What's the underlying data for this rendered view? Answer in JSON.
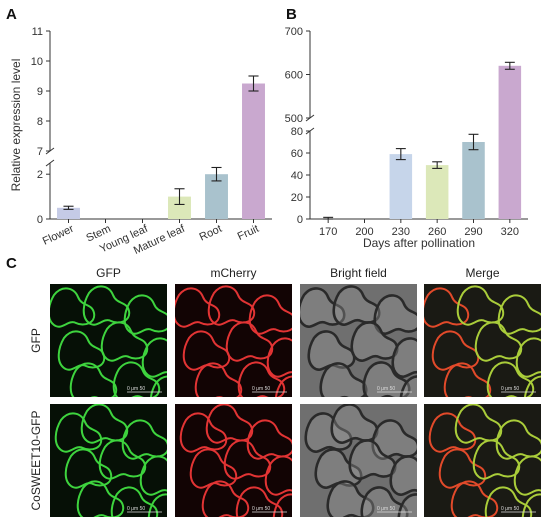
{
  "panels": {
    "a": "A",
    "b": "B",
    "c": "C"
  },
  "chart_data": [
    {
      "type": "bar",
      "panel": "A",
      "ylabel": "Relative expression level",
      "categories": [
        "Flower",
        "Stem",
        "Young leaf",
        "Mature leaf",
        "Root",
        "Fruit"
      ],
      "values": [
        0.5,
        0,
        0,
        1.0,
        2.0,
        9.25
      ],
      "errors": [
        0.07,
        0,
        0,
        0.35,
        0.3,
        0.25
      ],
      "colors": [
        "#c5cbe6",
        "#c5cbe6",
        "#c5cbe6",
        "#dce8b9",
        "#a9c2cd",
        "#c9a8cf"
      ],
      "y_break": {
        "lower": [
          0,
          2.5
        ],
        "upper": [
          7,
          11
        ]
      },
      "yticks_lower": [
        "0",
        "2"
      ],
      "yticks_upper": [
        "7",
        "8",
        "9",
        "10",
        "11"
      ]
    },
    {
      "type": "bar",
      "panel": "B",
      "xlabel": "Days after pollination",
      "categories": [
        "170",
        "200",
        "230",
        "260",
        "290",
        "320"
      ],
      "values": [
        0,
        0,
        59,
        49,
        70,
        620
      ],
      "errors": [
        1.5,
        0,
        5,
        3,
        7,
        8
      ],
      "colors": [
        "#c6d5ea",
        "#c6d5ea",
        "#c6d5ea",
        "#dce8b9",
        "#a9c2cd",
        "#c9a8cf"
      ],
      "y_break": {
        "lower": [
          0,
          80
        ],
        "upper": [
          500,
          700
        ]
      },
      "yticks_lower": [
        "0",
        "20",
        "40",
        "60",
        "80"
      ],
      "yticks_upper": [
        "500",
        "600",
        "700"
      ]
    }
  ],
  "micrographs": {
    "columns": [
      "GFP",
      "mCherry",
      "Bright field",
      "Merge"
    ],
    "rows": [
      "GFP",
      "CoSWEET10-GFP"
    ],
    "scale_bar_text": "0    μm    50"
  }
}
